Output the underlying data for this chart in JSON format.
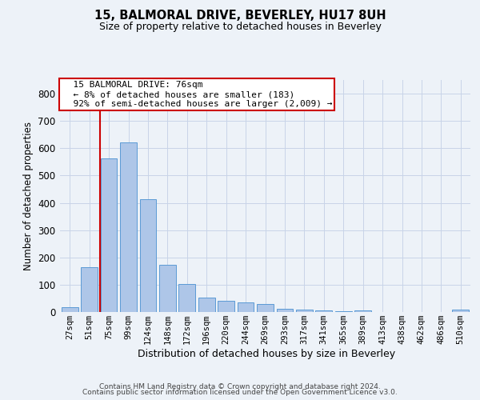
{
  "title": "15, BALMORAL DRIVE, BEVERLEY, HU17 8UH",
  "subtitle": "Size of property relative to detached houses in Beverley",
  "xlabel": "Distribution of detached houses by size in Beverley",
  "ylabel": "Number of detached properties",
  "annotation_text": "  15 BALMORAL DRIVE: 76sqm\n  ← 8% of detached houses are smaller (183)\n  92% of semi-detached houses are larger (2,009) →",
  "bar_categories": [
    "27sqm",
    "51sqm",
    "75sqm",
    "99sqm",
    "124sqm",
    "148sqm",
    "172sqm",
    "196sqm",
    "220sqm",
    "244sqm",
    "269sqm",
    "293sqm",
    "317sqm",
    "341sqm",
    "365sqm",
    "389sqm",
    "413sqm",
    "438sqm",
    "462sqm",
    "486sqm",
    "510sqm"
  ],
  "bar_values": [
    18,
    165,
    563,
    620,
    413,
    172,
    103,
    52,
    40,
    35,
    29,
    12,
    10,
    5,
    3,
    5,
    0,
    0,
    0,
    0,
    8
  ],
  "bar_color": "#aec6e8",
  "bar_edge_color": "#5b9bd5",
  "ann_box_facecolor": "#ffffff",
  "ann_box_edgecolor": "#cc0000",
  "vline_color": "#cc0000",
  "ylim": [
    0,
    850
  ],
  "yticks": [
    0,
    100,
    200,
    300,
    400,
    500,
    600,
    700,
    800
  ],
  "grid_color": "#c8d4e8",
  "background_color": "#edf2f8",
  "footer_line1": "Contains HM Land Registry data © Crown copyright and database right 2024.",
  "footer_line2": "Contains public sector information licensed under the Open Government Licence v3.0.",
  "vline_bar_index": 2,
  "n_bars": 21
}
